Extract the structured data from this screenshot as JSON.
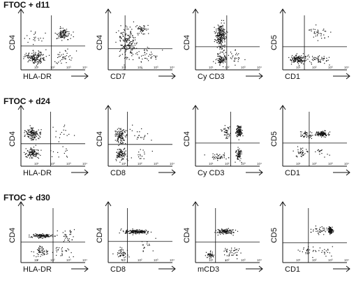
{
  "chart_data": {
    "type": "scatter",
    "x_ticks": [
      "10¹",
      "10²",
      "10³",
      "10⁴"
    ],
    "xlim": [
      0,
      4
    ],
    "ylim": [
      0,
      4
    ],
    "rows": [
      {
        "title": "FTOC + d11",
        "panels": [
          {
            "xlabel": "HLA-DR",
            "ylabel": "CD4",
            "quadrant_x": 1.9,
            "quadrant_y": 1.75,
            "clusters": [
              {
                "cx": 0.9,
                "cy": 0.95,
                "sx": 0.55,
                "sy": 0.35,
                "n": 150
              },
              {
                "cx": 2.6,
                "cy": 2.65,
                "sx": 0.35,
                "sy": 0.35,
                "n": 100
              },
              {
                "cx": 2.6,
                "cy": 1.0,
                "sx": 0.6,
                "sy": 0.4,
                "n": 35
              },
              {
                "cx": 0.9,
                "cy": 2.4,
                "sx": 0.5,
                "sy": 0.4,
                "n": 20
              }
            ]
          },
          {
            "xlabel": "CD7",
            "ylabel": "CD4",
            "quadrant_x": 1.05,
            "quadrant_y": 1.55,
            "clusters": [
              {
                "cx": 1.2,
                "cy": 2.0,
                "sx": 0.5,
                "sy": 0.9,
                "n": 170
              },
              {
                "cx": 2.1,
                "cy": 3.0,
                "sx": 0.3,
                "sy": 0.3,
                "n": 45
              },
              {
                "cx": 2.3,
                "cy": 1.1,
                "sx": 0.7,
                "sy": 0.4,
                "n": 40
              }
            ]
          },
          {
            "xlabel": "Cy CD3",
            "ylabel": "CD4",
            "quadrant_x": 1.95,
            "quadrant_y": 1.7,
            "clusters": [
              {
                "cx": 1.55,
                "cy": 2.5,
                "sx": 0.25,
                "sy": 0.8,
                "n": 220
              },
              {
                "cx": 1.6,
                "cy": 0.8,
                "sx": 0.3,
                "sy": 0.35,
                "n": 90
              },
              {
                "cx": 2.5,
                "cy": 1.0,
                "sx": 0.4,
                "sy": 0.4,
                "n": 25
              }
            ]
          },
          {
            "xlabel": "CD1",
            "ylabel": "CD5",
            "quadrant_x": 1.35,
            "quadrant_y": 1.7,
            "clusters": [
              {
                "cx": 0.9,
                "cy": 0.8,
                "sx": 0.4,
                "sy": 0.25,
                "n": 130
              },
              {
                "cx": 2.2,
                "cy": 0.85,
                "sx": 0.7,
                "sy": 0.3,
                "n": 50
              },
              {
                "cx": 2.3,
                "cy": 2.8,
                "sx": 0.6,
                "sy": 0.45,
                "n": 35
              }
            ]
          }
        ]
      },
      {
        "title": "FTOC + d24",
        "panels": [
          {
            "xlabel": "HLA-DR",
            "ylabel": "CD4",
            "quadrant_x": 1.85,
            "quadrant_y": 1.65,
            "clusters": [
              {
                "cx": 0.7,
                "cy": 2.4,
                "sx": 0.35,
                "sy": 0.35,
                "n": 130
              },
              {
                "cx": 0.7,
                "cy": 1.0,
                "sx": 0.35,
                "sy": 0.35,
                "n": 110
              },
              {
                "cx": 2.6,
                "cy": 2.5,
                "sx": 0.4,
                "sy": 0.5,
                "n": 15
              },
              {
                "cx": 2.5,
                "cy": 1.0,
                "sx": 0.6,
                "sy": 0.4,
                "n": 12
              }
            ]
          },
          {
            "xlabel": "CD8",
            "ylabel": "CD4",
            "quadrant_x": 1.2,
            "quadrant_y": 1.6,
            "clusters": [
              {
                "cx": 0.75,
                "cy": 2.3,
                "sx": 0.3,
                "sy": 0.45,
                "n": 110
              },
              {
                "cx": 0.75,
                "cy": 0.9,
                "sx": 0.3,
                "sy": 0.4,
                "n": 90
              },
              {
                "cx": 2.0,
                "cy": 2.3,
                "sx": 0.5,
                "sy": 0.5,
                "n": 20
              },
              {
                "cx": 2.0,
                "cy": 0.9,
                "sx": 0.5,
                "sy": 0.4,
                "n": 15
              }
            ]
          },
          {
            "xlabel": "Cy CD3",
            "ylabel": "CD4",
            "quadrant_x": 2.2,
            "quadrant_y": 1.7,
            "clusters": [
              {
                "cx": 2.7,
                "cy": 2.6,
                "sx": 0.15,
                "sy": 0.35,
                "n": 110
              },
              {
                "cx": 2.7,
                "cy": 0.9,
                "sx": 0.15,
                "sy": 0.35,
                "n": 70
              },
              {
                "cx": 1.9,
                "cy": 2.5,
                "sx": 0.2,
                "sy": 0.4,
                "n": 40
              },
              {
                "cx": 1.5,
                "cy": 0.75,
                "sx": 0.45,
                "sy": 0.25,
                "n": 40
              }
            ]
          },
          {
            "xlabel": "CD1",
            "ylabel": "CD5",
            "quadrant_x": 1.65,
            "quadrant_y": 1.7,
            "clusters": [
              {
                "cx": 2.4,
                "cy": 2.4,
                "sx": 0.35,
                "sy": 0.15,
                "n": 120
              },
              {
                "cx": 1.4,
                "cy": 2.3,
                "sx": 0.35,
                "sy": 0.25,
                "n": 40
              },
              {
                "cx": 1.1,
                "cy": 1.0,
                "sx": 0.35,
                "sy": 0.3,
                "n": 35
              },
              {
                "cx": 2.4,
                "cy": 1.1,
                "sx": 0.4,
                "sy": 0.35,
                "n": 15
              }
            ]
          }
        ]
      },
      {
        "title": "FTOC + d30",
        "panels": [
          {
            "xlabel": "HLA-DR",
            "ylabel": "CD4",
            "quadrant_x": 2.0,
            "quadrant_y": 1.5,
            "clusters": [
              {
                "cx": 1.3,
                "cy": 2.0,
                "sx": 0.55,
                "sy": 0.12,
                "n": 120
              },
              {
                "cx": 1.2,
                "cy": 0.8,
                "sx": 0.4,
                "sy": 0.4,
                "n": 55
              },
              {
                "cx": 2.9,
                "cy": 2.0,
                "sx": 0.4,
                "sy": 0.35,
                "n": 30
              },
              {
                "cx": 2.6,
                "cy": 0.9,
                "sx": 0.5,
                "sy": 0.4,
                "n": 25
              }
            ]
          },
          {
            "xlabel": "CD8",
            "ylabel": "CD4",
            "quadrant_x": 1.2,
            "quadrant_y": 1.55,
            "clusters": [
              {
                "cx": 1.7,
                "cy": 2.3,
                "sx": 0.6,
                "sy": 0.12,
                "n": 160
              },
              {
                "cx": 0.8,
                "cy": 0.65,
                "sx": 0.3,
                "sy": 0.3,
                "n": 45
              },
              {
                "cx": 2.3,
                "cy": 1.2,
                "sx": 0.6,
                "sy": 0.4,
                "n": 15
              }
            ]
          },
          {
            "xlabel": "mCD3",
            "ylabel": "CD4",
            "quadrant_x": 1.25,
            "quadrant_y": 1.5,
            "clusters": [
              {
                "cx": 1.8,
                "cy": 2.3,
                "sx": 0.45,
                "sy": 0.15,
                "n": 110
              },
              {
                "cx": 0.9,
                "cy": 0.6,
                "sx": 0.25,
                "sy": 0.2,
                "n": 40
              },
              {
                "cx": 2.3,
                "cy": 0.8,
                "sx": 0.6,
                "sy": 0.35,
                "n": 40
              }
            ]
          },
          {
            "xlabel": "CD1",
            "ylabel": "CD5",
            "quadrant_x": 1.6,
            "quadrant_y": 1.45,
            "clusters": [
              {
                "cx": 2.95,
                "cy": 2.4,
                "sx": 0.12,
                "sy": 0.2,
                "n": 100
              },
              {
                "cx": 2.2,
                "cy": 2.4,
                "sx": 0.5,
                "sy": 0.25,
                "n": 35
              },
              {
                "cx": 1.5,
                "cy": 0.9,
                "sx": 0.4,
                "sy": 0.35,
                "n": 25
              },
              {
                "cx": 2.6,
                "cy": 0.8,
                "sx": 0.45,
                "sy": 0.3,
                "n": 15
              }
            ]
          }
        ]
      }
    ]
  }
}
